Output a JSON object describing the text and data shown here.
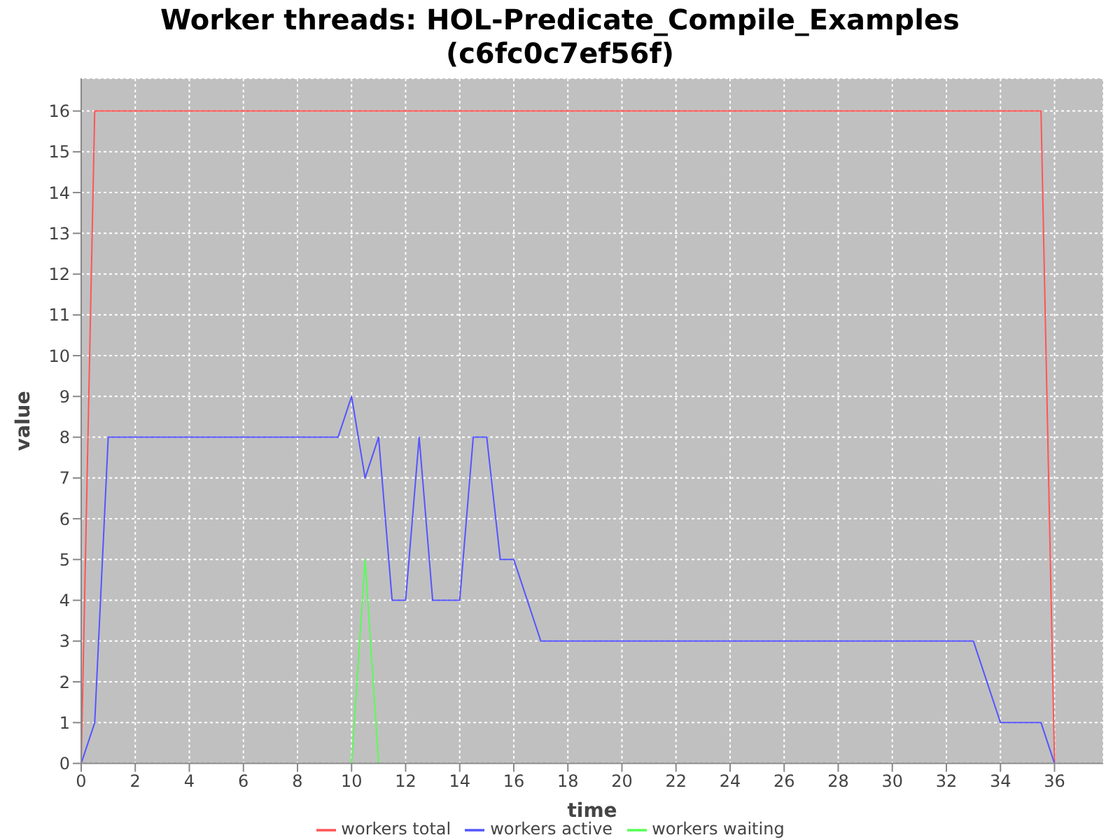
{
  "chart_data": {
    "type": "line",
    "title": "Worker threads: HOL-Predicate_Compile_Examples",
    "subtitle": "(c6fc0c7ef56f)",
    "xlabel": "time",
    "ylabel": "value",
    "xlim": [
      0,
      37.8
    ],
    "xticks": [
      0,
      2,
      4,
      6,
      8,
      10,
      12,
      14,
      16,
      18,
      20,
      22,
      24,
      26,
      28,
      30,
      32,
      34,
      36
    ],
    "ylim": [
      0,
      16.8
    ],
    "yticks": [
      0,
      1,
      2,
      3,
      4,
      5,
      6,
      7,
      8,
      9,
      10,
      11,
      12,
      13,
      14,
      15,
      16
    ],
    "grid": true,
    "legend": "bottom",
    "marker": "none",
    "line_style": "solid",
    "series": [
      {
        "name": "workers total",
        "color": "#ff5555",
        "x": [
          0,
          0.5,
          35.5,
          36
        ],
        "values": [
          0,
          16,
          16,
          0
        ]
      },
      {
        "name": "workers active",
        "color": "#5555ff",
        "x": [
          0,
          0.5,
          1,
          9.5,
          10,
          10.5,
          11,
          11.5,
          12,
          12.5,
          13,
          14,
          14.5,
          15,
          15.5,
          16,
          17,
          33,
          34,
          35.5,
          36
        ],
        "values": [
          0,
          1,
          8,
          8,
          9,
          7,
          8,
          4,
          4,
          8,
          4,
          4,
          8,
          8,
          5,
          5,
          3,
          3,
          1,
          1,
          0
        ]
      },
      {
        "name": "workers waiting",
        "color": "#55ff55",
        "x": [
          10,
          10.5,
          11
        ],
        "values": [
          0,
          5,
          0
        ]
      }
    ]
  }
}
